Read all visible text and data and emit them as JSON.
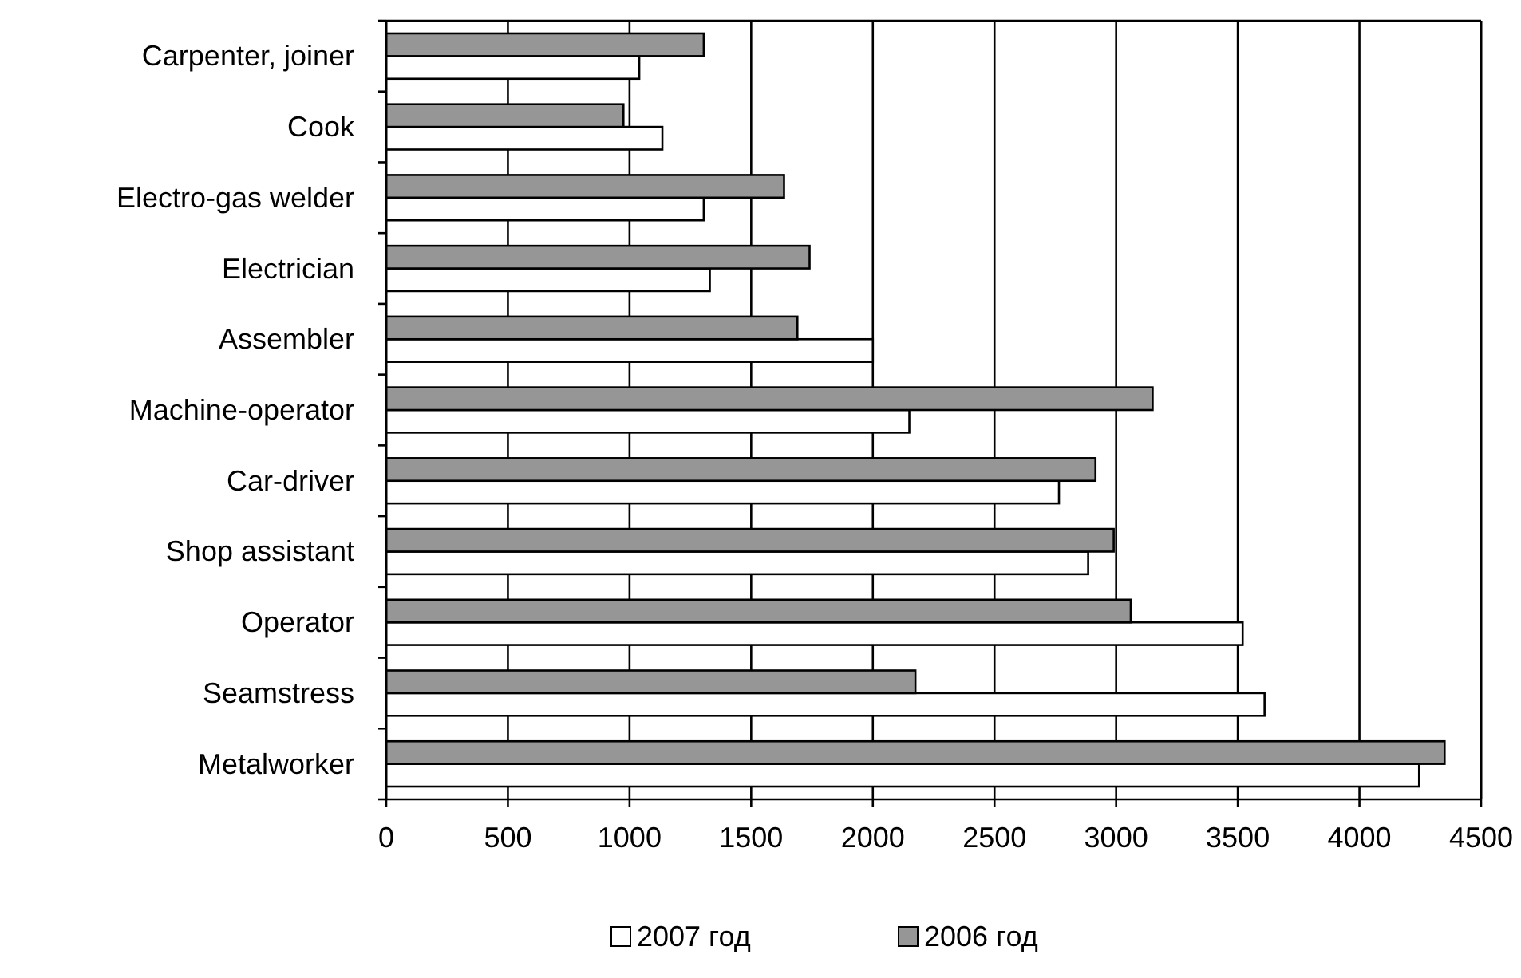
{
  "chart_data": {
    "type": "bar",
    "orientation": "horizontal",
    "categories": [
      "Carpenter, joiner",
      "Cook",
      "Electro-gas welder",
      "Electrician",
      "Assembler",
      "Machine-operator",
      "Car-driver",
      "Shop assistant",
      "Operator",
      "Seamstress",
      "Metalworker"
    ],
    "series": [
      {
        "name": "2007 год",
        "color": "#ffffff",
        "values": [
          1040,
          1135,
          1305,
          1330,
          2000,
          2150,
          2765,
          2885,
          3520,
          3610,
          4245
        ]
      },
      {
        "name": "2006 год",
        "color": "#969696",
        "values": [
          1305,
          975,
          1635,
          1740,
          1690,
          3150,
          2915,
          2990,
          3060,
          2175,
          4350
        ]
      }
    ],
    "xlim": [
      0,
      4500
    ],
    "xticks": [
      0,
      500,
      1000,
      1500,
      2000,
      2500,
      3000,
      3500,
      4000,
      4500
    ],
    "grid": "x",
    "legend": "bottom"
  }
}
